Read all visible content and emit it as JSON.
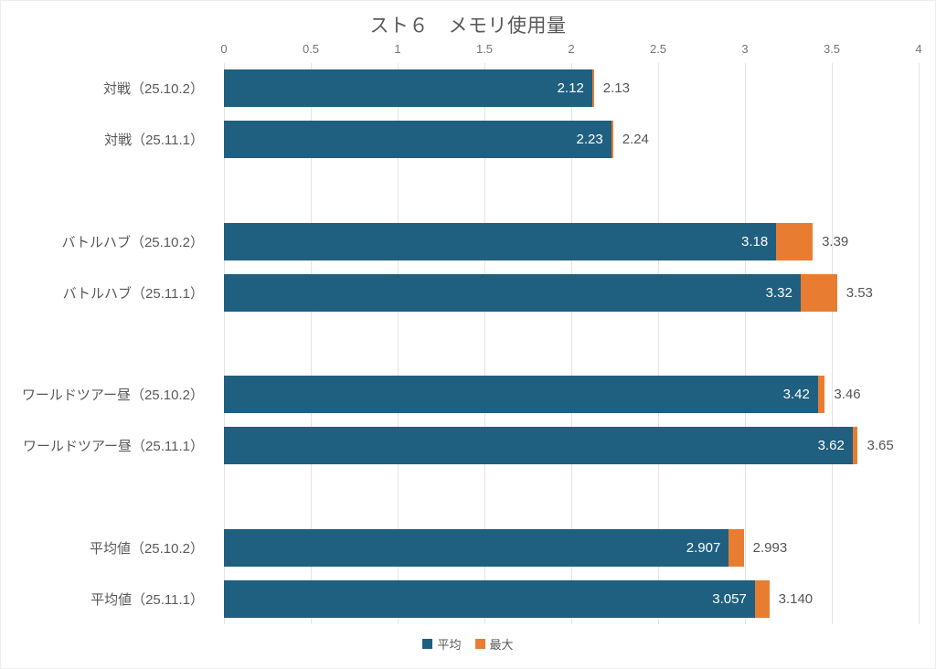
{
  "chart_data": {
    "type": "bar",
    "orientation": "horizontal",
    "stacked": true,
    "title": "スト６　メモリ使用量",
    "categories": [
      "対戦（25.10.2）",
      "対戦（25.11.1）",
      "バトルハブ（25.10.2）",
      "バトルハブ（25.11.1）",
      "ワールドツアー昼（25.10.2）",
      "ワールドツアー昼（25.11.1）",
      "平均値（25.10.2）",
      "平均値（25.11.1）"
    ],
    "series": [
      {
        "name": "平均",
        "color": "#1f5f80",
        "values": [
          2.12,
          2.23,
          3.18,
          3.32,
          3.42,
          3.62,
          2.907,
          3.057
        ],
        "labels": [
          "2.12",
          "2.23",
          "3.18",
          "3.32",
          "3.42",
          "3.62",
          "2.907",
          "3.057"
        ]
      },
      {
        "name": "最大",
        "color": "#e87d31",
        "values": [
          2.13,
          2.24,
          3.39,
          3.53,
          3.46,
          3.65,
          2.993,
          3.14
        ],
        "labels": [
          "2.13",
          "2.24",
          "3.39",
          "3.53",
          "3.46",
          "3.65",
          "2.993",
          "3.140"
        ]
      }
    ],
    "xlim": [
      0,
      4
    ],
    "xtick_labels": [
      "0",
      "0.5",
      "1",
      "1.5",
      "2",
      "2.5",
      "3",
      "3.5",
      "4"
    ],
    "grid": true,
    "legend_position": "bottom",
    "group_size": 2,
    "colors": {
      "gridline": "#e3e3e3",
      "axis_text": "#757575",
      "category_text": "#595959",
      "value_inside": "#ffffff",
      "value_outside": "#555555",
      "title_text": "#595959"
    }
  }
}
